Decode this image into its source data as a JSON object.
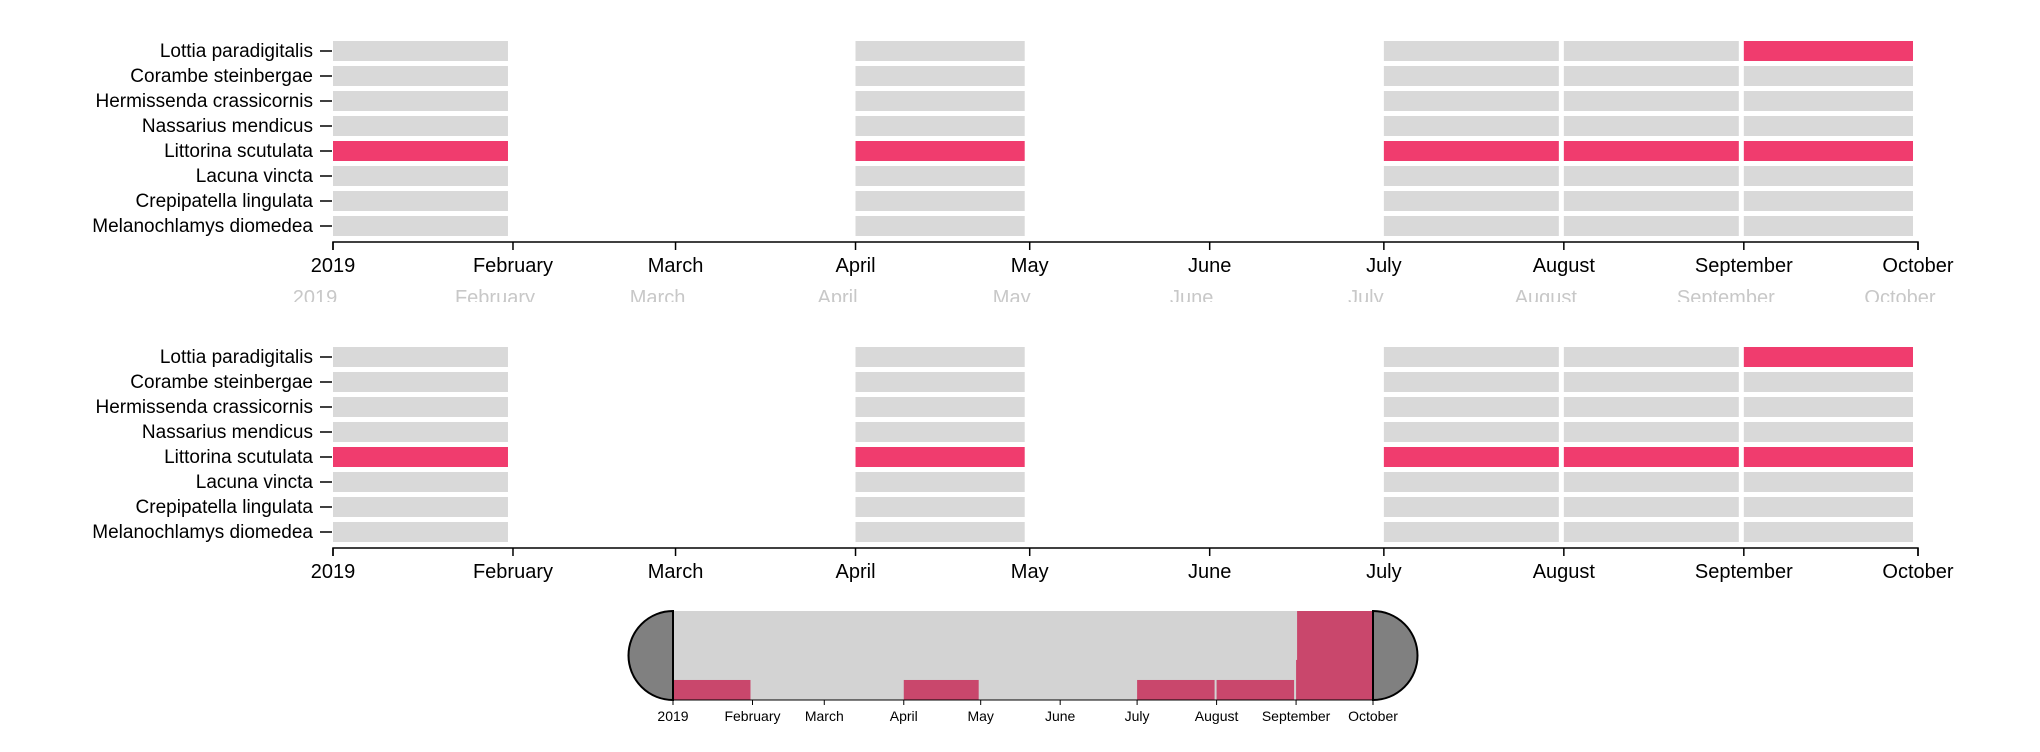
{
  "colors": {
    "absent": "#d9d9d9",
    "present": "#f03c6e",
    "axis": "#000000",
    "brush_background": "#d3d3d3",
    "brush_highlight": "#c9476c",
    "handle": "#808080"
  },
  "chart_data": {
    "type": "heatmap",
    "title": "",
    "xlabel": "",
    "ylabel": "",
    "x_ticks": [
      "2019",
      "February",
      "March",
      "April",
      "May",
      "June",
      "July",
      "August",
      "September",
      "October"
    ],
    "x_range": [
      "2019-01-01",
      "2019-10-01"
    ],
    "species": [
      "Lottia paradigitalis",
      "Corambe steinbergae",
      "Hermissenda crassicornis",
      "Nassarius mendicus",
      "Littorina scutulata",
      "Lacuna vincta",
      "Crepipatella lingulata",
      "Melanochlamys diomedea"
    ],
    "sampled_months": [
      {
        "start": "2019-01-01",
        "end": "2019-01-31"
      },
      {
        "start": "2019-04-01",
        "end": "2019-04-30"
      },
      {
        "start": "2019-07-01",
        "end": "2019-07-31"
      },
      {
        "start": "2019-08-01",
        "end": "2019-08-31"
      },
      {
        "start": "2019-09-01",
        "end": "2019-09-30"
      }
    ],
    "presence": {
      "Lottia paradigitalis": [
        0,
        0,
        0,
        0,
        1
      ],
      "Corambe steinbergae": [
        0,
        0,
        0,
        0,
        0
      ],
      "Hermissenda crassicornis": [
        0,
        0,
        0,
        0,
        0
      ],
      "Nassarius mendicus": [
        0,
        0,
        0,
        0,
        0
      ],
      "Littorina scutulata": [
        1,
        1,
        1,
        1,
        1
      ],
      "Lacuna vincta": [
        0,
        0,
        0,
        0,
        0
      ],
      "Crepipatella lingulata": [
        0,
        0,
        0,
        0,
        0
      ],
      "Melanochlamys diomedea": [
        0,
        0,
        0,
        0,
        0
      ]
    },
    "brush": {
      "x_ticks": [
        "2019",
        "February",
        "March",
        "April",
        "May",
        "June",
        "July",
        "August",
        "September",
        "October"
      ],
      "selection": [
        "2019-01-01",
        "2019-10-01"
      ],
      "highlight": {
        "start": "2019-09-01",
        "end": "2019-09-30"
      }
    }
  }
}
